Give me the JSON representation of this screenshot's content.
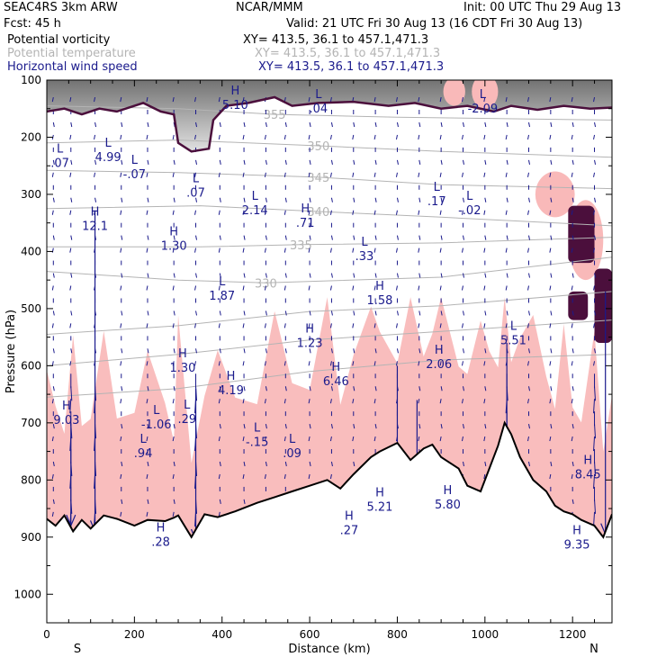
{
  "header": {
    "model": "SEAC4RS  3km ARW",
    "org": "NCAR/MMM",
    "init": "Init: 00 UTC Thu 29 Aug 13",
    "fcst": "Fcst:   45 h",
    "valid": "Valid: 21 UTC Fri 30 Aug 13 (16 CDT Fri 30 Aug 13)"
  },
  "fields": [
    {
      "label": "Potential vorticity",
      "xy": "XY= 413.5, 36.1 to 457.1,471.3",
      "color": "#000000"
    },
    {
      "label": "Potential temperature",
      "xy": "XY= 413.5, 36.1 to 457.1,471.3",
      "color": "#b4b4b4"
    },
    {
      "label": "Horizontal wind speed",
      "xy": "XY= 413.5, 36.1 to 457.1,471.3",
      "color": "#1a1a8c"
    }
  ],
  "colors": {
    "pv_fill": "#f9b9b9",
    "pv_dark": "#4b0f3c",
    "theta": "#b4b4b4",
    "wind": "#1a1a8c",
    "terrain": "#000000"
  },
  "chart_data": {
    "type": "cross-section",
    "xlabel": "Distance (km)",
    "ylabel": "Pressure (hPa)",
    "xlim": [
      0,
      1290
    ],
    "ylim": [
      100,
      1050
    ],
    "x_ticks": [
      0,
      200,
      400,
      600,
      800,
      1000,
      1200
    ],
    "x_minor_step": 50,
    "y_ticks": [
      100,
      200,
      300,
      400,
      500,
      600,
      700,
      800,
      900,
      1000
    ],
    "y_minor_step": 50,
    "end_labels": {
      "left": "S",
      "right": "N"
    },
    "theta_contours": [
      {
        "label": "355",
        "at_x": 520,
        "pts": [
          [
            0,
            145
          ],
          [
            300,
            150
          ],
          [
            520,
            160
          ],
          [
            800,
            165
          ],
          [
            1290,
            170
          ]
        ]
      },
      {
        "label": "350",
        "at_x": 620,
        "pts": [
          [
            0,
            210
          ],
          [
            300,
            205
          ],
          [
            620,
            215
          ],
          [
            900,
            225
          ],
          [
            1290,
            235
          ]
        ]
      },
      {
        "label": "345",
        "at_x": 620,
        "pts": [
          [
            0,
            258
          ],
          [
            300,
            262
          ],
          [
            620,
            270
          ],
          [
            900,
            283
          ],
          [
            1290,
            290
          ]
        ]
      },
      {
        "label": "340",
        "at_x": 620,
        "pts": [
          [
            0,
            325
          ],
          [
            350,
            320
          ],
          [
            620,
            330
          ],
          [
            900,
            340
          ],
          [
            1290,
            355
          ]
        ]
      },
      {
        "label": "335",
        "at_x": 580,
        "pts": [
          [
            0,
            392
          ],
          [
            350,
            392
          ],
          [
            580,
            388
          ],
          [
            900,
            385
          ],
          [
            1290,
            375
          ]
        ]
      },
      {
        "label": "330",
        "at_x": 500,
        "pts": [
          [
            0,
            435
          ],
          [
            300,
            450
          ],
          [
            500,
            455
          ],
          [
            900,
            445
          ],
          [
            1290,
            410
          ]
        ]
      },
      {
        "label": "",
        "at_x": 0,
        "pts": [
          [
            0,
            545
          ],
          [
            300,
            530
          ],
          [
            600,
            505
          ],
          [
            900,
            495
          ],
          [
            1290,
            470
          ]
        ]
      },
      {
        "label": "",
        "at_x": 0,
        "pts": [
          [
            0,
            600
          ],
          [
            300,
            580
          ],
          [
            600,
            555
          ],
          [
            900,
            540
          ],
          [
            1290,
            520
          ]
        ]
      },
      {
        "label": "",
        "at_x": 0,
        "pts": [
          [
            0,
            655
          ],
          [
            300,
            640
          ],
          [
            600,
            610
          ],
          [
            900,
            590
          ],
          [
            1290,
            580
          ]
        ]
      }
    ],
    "pv_extrema": [
      {
        "type": "L",
        "value": ".07",
        "x": 30,
        "p": 230
      },
      {
        "type": "L",
        "value": "4.99",
        "x": 140,
        "p": 220
      },
      {
        "type": "L",
        "value": "-.07",
        "x": 200,
        "p": 250
      },
      {
        "type": "L",
        "value": ".07",
        "x": 340,
        "p": 282
      },
      {
        "type": "H",
        "value": "12.1",
        "x": 110,
        "p": 340
      },
      {
        "type": "H",
        "value": "1.30",
        "x": 290,
        "p": 375
      },
      {
        "type": "H",
        "value": "5.10",
        "x": 430,
        "p": 128
      },
      {
        "type": "L",
        "value": ".04",
        "x": 620,
        "p": 135
      },
      {
        "type": "L",
        "value": "-2.09",
        "x": 995,
        "p": 135
      },
      {
        "type": "L",
        "value": "2.14",
        "x": 475,
        "p": 313
      },
      {
        "type": "H",
        "value": ".71",
        "x": 590,
        "p": 335
      },
      {
        "type": "L",
        "value": ".17",
        "x": 890,
        "p": 297
      },
      {
        "type": "L",
        "value": "-.02",
        "x": 965,
        "p": 313
      },
      {
        "type": "L",
        "value": ".33",
        "x": 725,
        "p": 393
      },
      {
        "type": "L",
        "value": "1.87",
        "x": 400,
        "p": 462
      },
      {
        "type": "H",
        "value": "1.58",
        "x": 760,
        "p": 470
      },
      {
        "type": "H",
        "value": "1.23",
        "x": 600,
        "p": 545
      },
      {
        "type": "L",
        "value": "5.51",
        "x": 1065,
        "p": 540
      },
      {
        "type": "H",
        "value": "2.06",
        "x": 895,
        "p": 582
      },
      {
        "type": "H",
        "value": "1.30",
        "x": 310,
        "p": 588
      },
      {
        "type": "H",
        "value": "6.46",
        "x": 660,
        "p": 612
      },
      {
        "type": "H",
        "value": "4.19",
        "x": 420,
        "p": 628
      },
      {
        "type": "H",
        "value": "9.03",
        "x": 45,
        "p": 680
      },
      {
        "type": "L",
        "value": ".29",
        "x": 320,
        "p": 678
      },
      {
        "type": "L",
        "value": "-1.06",
        "x": 250,
        "p": 688
      },
      {
        "type": "L",
        "value": "-.15",
        "x": 480,
        "p": 718
      },
      {
        "type": "L",
        "value": ".09",
        "x": 560,
        "p": 738
      },
      {
        "type": "L",
        "value": ".94",
        "x": 220,
        "p": 738
      },
      {
        "type": "H",
        "value": "8.45",
        "x": 1235,
        "p": 775
      },
      {
        "type": "H",
        "value": "5.21",
        "x": 760,
        "p": 832
      },
      {
        "type": "H",
        "value": "5.80",
        "x": 915,
        "p": 828
      },
      {
        "type": "H",
        "value": ".27",
        "x": 690,
        "p": 873
      },
      {
        "type": "H",
        "value": ".28",
        "x": 260,
        "p": 893
      },
      {
        "type": "H",
        "value": "9.35",
        "x": 1210,
        "p": 898
      }
    ],
    "pv_dark_regions": [
      {
        "x0": 1190,
        "x1": 1250,
        "p0": 320,
        "p1": 420
      },
      {
        "x0": 1250,
        "x1": 1290,
        "p0": 430,
        "p1": 560
      },
      {
        "x0": 1190,
        "x1": 1235,
        "p0": 470,
        "p1": 520
      }
    ],
    "tropopause_pts": [
      [
        0,
        155
      ],
      [
        40,
        150
      ],
      [
        80,
        160
      ],
      [
        120,
        150
      ],
      [
        160,
        155
      ],
      [
        220,
        140
      ],
      [
        260,
        155
      ],
      [
        290,
        160
      ],
      [
        300,
        210
      ],
      [
        330,
        225
      ],
      [
        370,
        220
      ],
      [
        380,
        170
      ],
      [
        410,
        145
      ],
      [
        460,
        140
      ],
      [
        520,
        130
      ],
      [
        560,
        145
      ],
      [
        620,
        140
      ],
      [
        700,
        138
      ],
      [
        780,
        145
      ],
      [
        840,
        140
      ],
      [
        900,
        150
      ],
      [
        960,
        145
      ],
      [
        1020,
        155
      ],
      [
        1060,
        145
      ],
      [
        1120,
        152
      ],
      [
        1180,
        145
      ],
      [
        1240,
        150
      ],
      [
        1290,
        148
      ]
    ],
    "terrain_pts": [
      [
        0,
        868
      ],
      [
        20,
        880
      ],
      [
        40,
        862
      ],
      [
        60,
        890
      ],
      [
        80,
        870
      ],
      [
        100,
        885
      ],
      [
        130,
        862
      ],
      [
        160,
        868
      ],
      [
        200,
        880
      ],
      [
        230,
        870
      ],
      [
        270,
        872
      ],
      [
        290,
        866
      ],
      [
        300,
        862
      ],
      [
        330,
        900
      ],
      [
        360,
        860
      ],
      [
        390,
        865
      ],
      [
        430,
        855
      ],
      [
        480,
        840
      ],
      [
        520,
        830
      ],
      [
        560,
        820
      ],
      [
        600,
        810
      ],
      [
        640,
        800
      ],
      [
        670,
        815
      ],
      [
        700,
        790
      ],
      [
        740,
        760
      ],
      [
        760,
        750
      ],
      [
        800,
        735
      ],
      [
        830,
        765
      ],
      [
        860,
        745
      ],
      [
        880,
        738
      ],
      [
        900,
        760
      ],
      [
        940,
        780
      ],
      [
        960,
        810
      ],
      [
        990,
        820
      ],
      [
        1010,
        780
      ],
      [
        1030,
        740
      ],
      [
        1045,
        700
      ],
      [
        1060,
        720
      ],
      [
        1080,
        760
      ],
      [
        1110,
        800
      ],
      [
        1140,
        820
      ],
      [
        1160,
        845
      ],
      [
        1180,
        855
      ],
      [
        1200,
        860
      ],
      [
        1220,
        870
      ],
      [
        1250,
        880
      ],
      [
        1270,
        900
      ],
      [
        1290,
        860
      ]
    ],
    "wind_vectors_columns_km": [
      15,
      55,
      110,
      170,
      230,
      290,
      340,
      395,
      450,
      500,
      545,
      600,
      650,
      700,
      750,
      800,
      850,
      900,
      950,
      1000,
      1050,
      1100,
      1150,
      1200,
      1250
    ]
  }
}
